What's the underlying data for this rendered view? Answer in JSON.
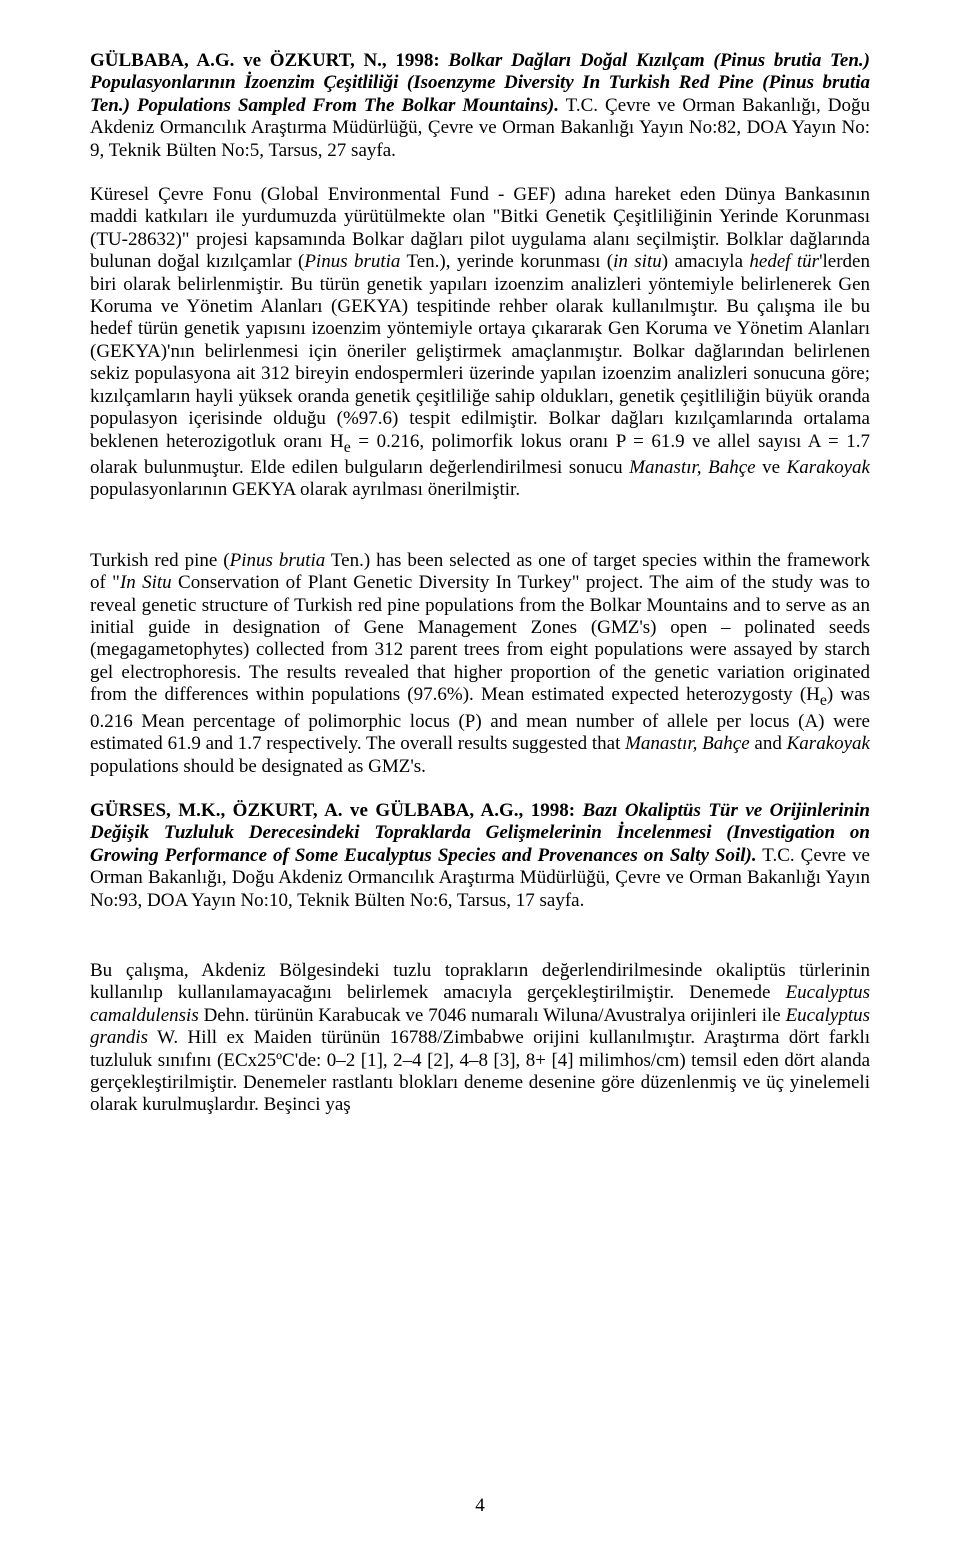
{
  "page": {
    "number": "4",
    "paragraphs": [
      {
        "runs": [
          {
            "text": "GÜLBABA, A.G. ve ÖZKURT, N., 1998: ",
            "bold": true,
            "italic": false
          },
          {
            "text": "Bolkar Dağları Doğal Kızılçam (Pinus brutia Ten.) Populasyonlarının İzoenzim Çeşitliliği (Isoenzyme Diversity In Turkish Red Pine (Pinus brutia Ten.) Populations Sampled From The Bolkar Mountains).",
            "bold": true,
            "italic": true
          },
          {
            "text": " T.C. Çevre ve Orman Bakanlığı, Doğu Akdeniz Ormancılık Araştırma Müdürlüğü, Çevre ve Orman Bakanlığı Yayın No:82, DOA Yayın No: 9, Teknik Bülten No:5, Tarsus, 27 sayfa.",
            "bold": false,
            "italic": false
          }
        ]
      },
      {
        "runs": [
          {
            "text": "Küresel Çevre Fonu (Global Environmental Fund - GEF) adına hareket eden Dünya Bankasının maddi katkıları ile yurdumuzda yürütülmekte olan \"Bitki Genetik Çeşitliliğinin Yerinde Korunması (TU-28632)\" projesi kapsamında Bolkar dağları pilot uygulama alanı seçilmiştir. Bolklar dağlarında bulunan doğal kızılçamlar (",
            "bold": false,
            "italic": false
          },
          {
            "text": "Pinus brutia",
            "bold": false,
            "italic": true
          },
          {
            "text": " Ten.), yerinde korunması (",
            "bold": false,
            "italic": false
          },
          {
            "text": "in situ",
            "bold": false,
            "italic": true
          },
          {
            "text": ") amacıyla ",
            "bold": false,
            "italic": false
          },
          {
            "text": "hedef tür",
            "bold": false,
            "italic": true
          },
          {
            "text": "'lerden biri olarak belirlenmiştir. Bu türün genetik yapıları izoenzim analizleri yöntemiyle belirlenerek Gen Koruma ve Yönetim Alanları (GEKYA) tespitinde rehber olarak kullanılmıştır. Bu çalışma ile bu hedef türün genetik yapısını izoenzim yöntemiyle ortaya çıkararak Gen Koruma ve Yönetim Alanları (GEKYA)'nın belirlenmesi için öneriler geliştirmek amaçlanmıştır. Bolkar dağlarından belirlenen sekiz populasyona ait 312 bireyin endospermleri üzerinde yapılan izoenzim analizleri sonucuna göre; kızılçamların hayli yüksek oranda genetik çeşitliliğe sahip oldukları, genetik çeşitliliğin büyük oranda populasyon içerisinde olduğu (%97.6) tespit edilmiştir. Bolkar dağları kızılçamlarında ortalama beklenen heterozigotluk oranı H",
            "bold": false,
            "italic": false
          },
          {
            "text": "e",
            "bold": false,
            "italic": false,
            "sub": true
          },
          {
            "text": " = 0.216, polimorfik lokus oranı P = 61.9 ve allel sayısı A = 1.7 olarak bulunmuştur. Elde edilen bulguların değerlendirilmesi sonucu ",
            "bold": false,
            "italic": false
          },
          {
            "text": "Manastır, Bahçe",
            "bold": false,
            "italic": true
          },
          {
            "text": " ve ",
            "bold": false,
            "italic": false
          },
          {
            "text": "Karakoyak",
            "bold": false,
            "italic": true
          },
          {
            "text": " populasyonlarının GEKYA olarak ayrılması önerilmiştir.",
            "bold": false,
            "italic": false
          }
        ]
      },
      {
        "runs": [
          {
            "text": "Turkish red pine (",
            "bold": false,
            "italic": false
          },
          {
            "text": "Pinus brutia",
            "bold": false,
            "italic": true
          },
          {
            "text": " Ten.) has been selected as one of target species within the framework of \"",
            "bold": false,
            "italic": false
          },
          {
            "text": "In Situ",
            "bold": false,
            "italic": true
          },
          {
            "text": " Conservation of Plant Genetic Diversity In Turkey\" project. The aim of the study was to reveal genetic structure of Turkish red pine populations from the Bolkar Mountains and to serve as an initial guide in designation of Gene Management Zones (GMZ's) open – polinated seeds (megagametophytes) collected from 312 parent trees from eight populations were assayed by starch gel electrophoresis. The results revealed that higher proportion of  the genetic variation originated from the differences within populations (97.6%).  Mean estimated expected heterozygosty (H",
            "bold": false,
            "italic": false
          },
          {
            "text": "e",
            "bold": false,
            "italic": false,
            "sub": true
          },
          {
            "text": ") was 0.216 Mean percentage of polimorphic locus (P) and mean number of allele per locus (A) were estimated 61.9 and 1.7 respectively. The overall results suggested that ",
            "bold": false,
            "italic": false
          },
          {
            "text": "Manastır, Bahçe",
            "bold": false,
            "italic": true
          },
          {
            "text": " and ",
            "bold": false,
            "italic": false
          },
          {
            "text": "Karakoyak",
            "bold": false,
            "italic": true
          },
          {
            "text": " populations should be designated as GMZ's.",
            "bold": false,
            "italic": false
          }
        ]
      },
      {
        "runs": [
          {
            "text": "GÜRSES, M.K., ÖZKURT, A. ve GÜLBABA, A.G., 1998: ",
            "bold": true,
            "italic": false
          },
          {
            "text": "Bazı Okaliptüs Tür ve Orijinlerinin Değişik Tuzluluk Derecesindeki Topraklarda Gelişmelerinin İncelenmesi (Investigation on Growing Performance of Some Eucalyptus Species and Provenances on Salty Soil).",
            "bold": true,
            "italic": true
          },
          {
            "text": " T.C. Çevre ve Orman Bakanlığı, Doğu Akdeniz Ormancılık Araştırma Müdürlüğü, Çevre ve Orman Bakanlığı Yayın No:93, DOA Yayın No:10, Teknik Bülten No:6, Tarsus, 17 sayfa.",
            "bold": false,
            "italic": false
          }
        ]
      },
      {
        "runs": [
          {
            "text": "Bu çalışma, Akdeniz Bölgesindeki tuzlu toprakların değerlendirilmesinde okaliptüs türlerinin kullanılıp kullanılamayacağını belirlemek amacıyla gerçekleştirilmiştir. Denemede ",
            "bold": false,
            "italic": false
          },
          {
            "text": "Eucalyptus camaldulensis",
            "bold": false,
            "italic": true
          },
          {
            "text": " Dehn. türünün Karabucak ve 7046 numaralı Wiluna/Avustralya orijinleri ile ",
            "bold": false,
            "italic": false
          },
          {
            "text": "Eucalyptus grandis",
            "bold": false,
            "italic": true
          },
          {
            "text": " W. Hill ex Maiden türünün 16788/Zimbabwe orijini kullanılmıştır. Araştırma dört farklı tuzluluk sınıfını (ECx25ºC'de: 0–2 [1], 2–4 [2], 4–8 [3], 8+ [4] milimhos/cm) temsil eden dört alanda gerçekleştirilmiştir. Denemeler rastlantı blokları deneme desenine göre düzenlenmiş ve üç yinelemeli olarak kurulmuşlardır. Beşinci yaş",
            "bold": false,
            "italic": false
          }
        ]
      }
    ]
  },
  "style": {
    "spacer_after": [
      1,
      3
    ]
  }
}
